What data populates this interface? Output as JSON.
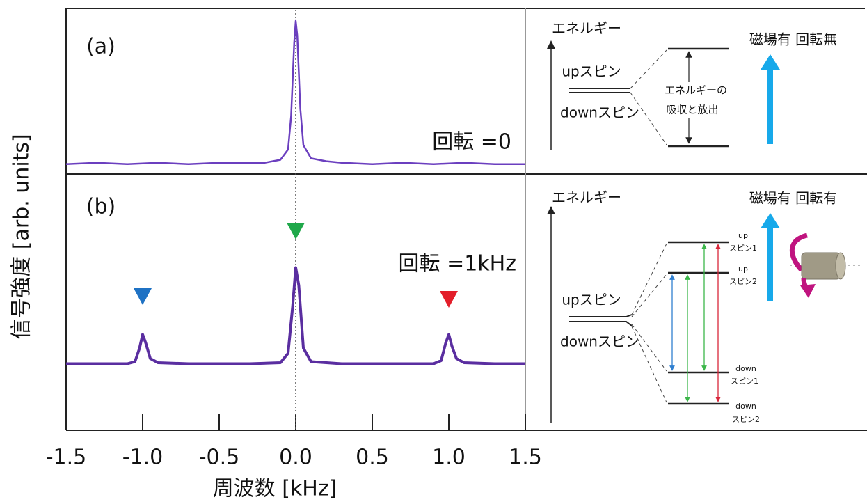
{
  "chart_data": {
    "type": "line",
    "xlabel": "周波数 [kHz]",
    "ylabel": "信号強度 [arb. units]",
    "xlim": [
      -1.5,
      1.5
    ],
    "xticks": [
      -1.5,
      {
        "value": -1.0,
        "label": "-1.0"
      },
      -0.5,
      {
        "value": 0.0,
        "label": "0.0"
      },
      0.5,
      {
        "value": 1.0,
        "label": "1.0"
      },
      1.5
    ],
    "vline": 0,
    "panels": [
      {
        "label": "(a)",
        "annotation": "回転 =0",
        "ylim": [
          0,
          1
        ],
        "color": "#6b3fbf",
        "x": [
          -1.5,
          -1.3,
          -1.1,
          -0.9,
          -0.7,
          -0.5,
          -0.3,
          -0.2,
          -0.1,
          -0.05,
          -0.03,
          -0.01,
          0,
          0.01,
          0.03,
          0.05,
          0.1,
          0.2,
          0.3,
          0.5,
          0.7,
          0.9,
          1.1,
          1.3,
          1.5
        ],
        "values": [
          0.02,
          0.03,
          0.02,
          0.03,
          0.02,
          0.03,
          0.03,
          0.03,
          0.05,
          0.12,
          0.35,
          0.85,
          1.0,
          0.9,
          0.4,
          0.15,
          0.06,
          0.04,
          0.03,
          0.02,
          0.03,
          0.02,
          0.03,
          0.02,
          0.02
        ]
      },
      {
        "label": "(b)",
        "annotation": "回転 =1kHz",
        "ylim": [
          0,
          1
        ],
        "color": "#5a2ea0",
        "x": [
          -1.5,
          -1.3,
          -1.1,
          -1.05,
          -1.02,
          -1.0,
          -0.98,
          -0.95,
          -0.9,
          -0.7,
          -0.5,
          -0.3,
          -0.1,
          -0.05,
          -0.02,
          0,
          0.02,
          0.05,
          0.1,
          0.3,
          0.5,
          0.7,
          0.9,
          0.95,
          0.98,
          1.0,
          1.02,
          1.05,
          1.1,
          1.3,
          1.5
        ],
        "values": [
          0.05,
          0.05,
          0.05,
          0.07,
          0.2,
          0.33,
          0.25,
          0.1,
          0.06,
          0.05,
          0.05,
          0.05,
          0.06,
          0.15,
          0.6,
          0.97,
          0.8,
          0.2,
          0.07,
          0.05,
          0.05,
          0.05,
          0.05,
          0.08,
          0.25,
          0.33,
          0.22,
          0.1,
          0.06,
          0.05,
          0.05
        ],
        "markers": [
          {
            "x": -1.0,
            "color": "#1f72c4"
          },
          {
            "x": 0.0,
            "color": "#1fa84a"
          },
          {
            "x": 1.0,
            "color": "#e31e2a"
          }
        ]
      }
    ]
  },
  "diagrams": {
    "top": {
      "energy": "エネルギー",
      "title": "磁場有 回転無",
      "up": "upスピン",
      "down": "downスピン",
      "note": [
        "エネルギーの",
        "吸収と放出"
      ]
    },
    "bottom": {
      "energy": "エネルギー",
      "title": "磁場有 回転有",
      "up": "upスピン",
      "down": "downスピン",
      "levels": [
        [
          "up",
          "スピン1"
        ],
        [
          "up",
          "スピン2"
        ],
        [
          "down",
          "スピン1"
        ],
        [
          "down",
          "スピン2"
        ]
      ]
    }
  }
}
